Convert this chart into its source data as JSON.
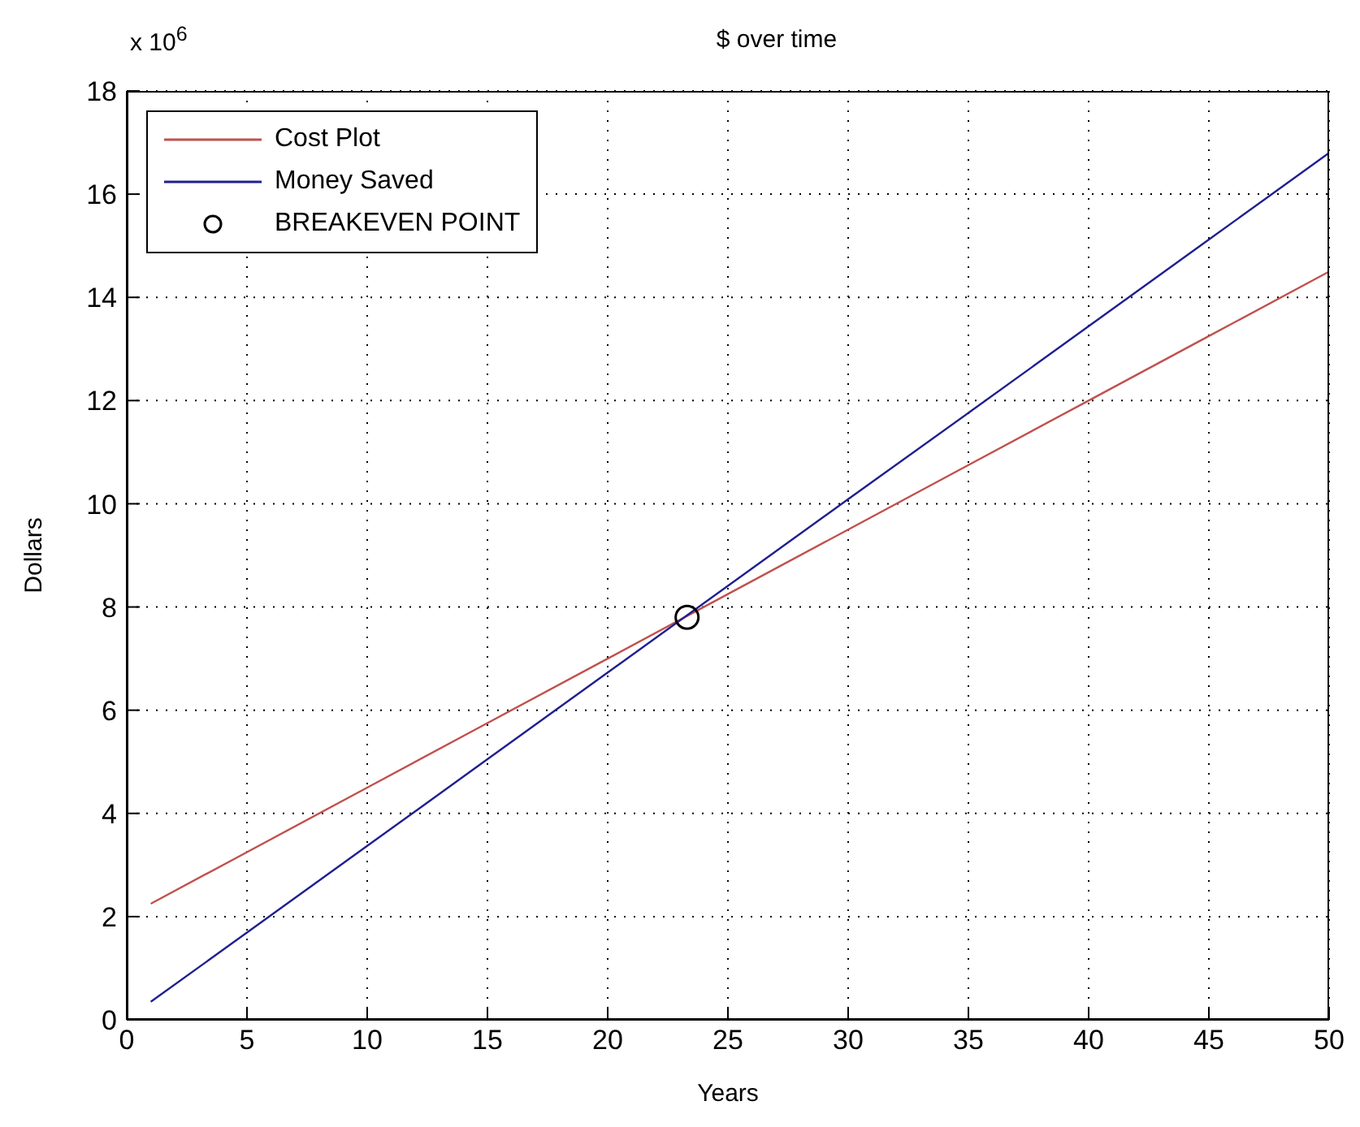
{
  "chart_data": {
    "type": "line",
    "title": "$ over time",
    "xlabel": "Years",
    "ylabel": "Dollars",
    "annotations": [
      "x 10$^{6}$"
    ],
    "xlim": [
      0,
      50
    ],
    "xticks": [
      0,
      5,
      10,
      15,
      20,
      25,
      30,
      35,
      40,
      45,
      50
    ],
    "ylim": [
      0,
      18
    ],
    "yticks": [
      0,
      2,
      4,
      6,
      8,
      10,
      12,
      14,
      16,
      18
    ],
    "grid": true,
    "legend": "top left",
    "line_style": "solid",
    "series": [
      {
        "name": "Cost Plot",
        "color": "#c0504d",
        "x": [
          1,
          5,
          10,
          15,
          20,
          25,
          30,
          35,
          40,
          45,
          50
        ],
        "values": [
          2.25,
          3.25,
          4.5,
          5.75,
          7.0,
          8.25,
          9.5,
          10.75,
          12.0,
          13.25,
          14.5
        ]
      },
      {
        "name": "Money Saved",
        "color": "#1f1f8f",
        "x": [
          1,
          5,
          10,
          15,
          20,
          25,
          30,
          35,
          40,
          45,
          50
        ],
        "values": [
          0.35,
          1.69,
          3.37,
          5.05,
          6.73,
          8.41,
          10.09,
          11.76,
          13.44,
          15.12,
          16.8
        ]
      },
      {
        "name": "BREAKEVEN POINT",
        "type": "scatter",
        "marker": "circle",
        "color": "#000000",
        "x": [
          23.3
        ],
        "values": [
          7.8
        ]
      }
    ]
  }
}
